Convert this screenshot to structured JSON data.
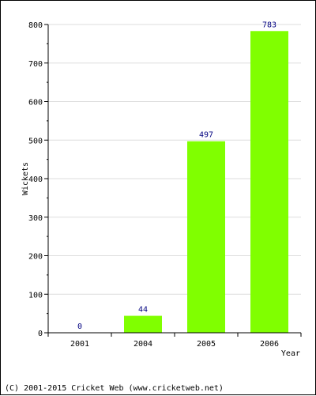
{
  "chart_data": {
    "type": "bar",
    "categories": [
      "2001",
      "2004",
      "2005",
      "2006"
    ],
    "values": [
      0,
      44,
      497,
      783
    ],
    "xlabel": "Year",
    "ylabel": "Wickets",
    "ylim": [
      0,
      800
    ],
    "yticks": [
      0,
      100,
      200,
      300,
      400,
      500,
      600,
      700,
      800
    ],
    "grid": true,
    "bar_color": "#80ff00",
    "value_label_color": "#000080"
  },
  "footer": {
    "text": "(C) 2001-2015 Cricket Web (www.cricketweb.net)"
  }
}
